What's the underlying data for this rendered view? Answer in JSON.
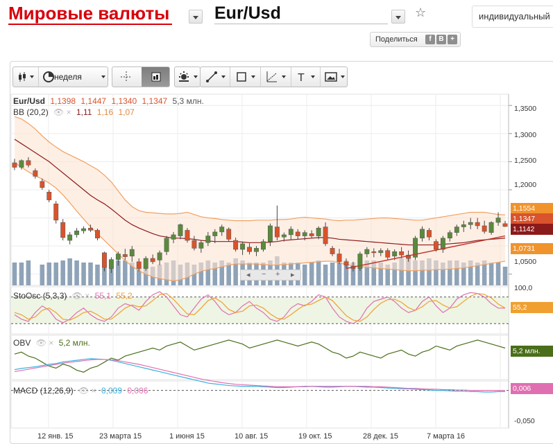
{
  "header": {
    "title": "Мировые валюты",
    "pair": "Eur/Usd",
    "mode_input": "индивидуальный",
    "share_label": "Поделиться",
    "share_buttons": [
      "f",
      "B",
      "+"
    ]
  },
  "toolbar": {
    "period_label": "неделя"
  },
  "price_legend": {
    "symbol": "Eur/Usd",
    "open": "1,1398",
    "high": "1,1447",
    "low": "1,1340",
    "close": "1,1347",
    "volume": "5,3 млн."
  },
  "bb_legend": {
    "name": "BB (20,2)",
    "mid": "1,11",
    "upper": "1,16",
    "lower": "1,07"
  },
  "sto_legend": {
    "name": "StoOsc (5,3,3)",
    "k": "55,1",
    "d": "55,2"
  },
  "obv_legend": {
    "name": "OBV",
    "value": "5,2 млн."
  },
  "macd_legend": {
    "name": "MACD (12,26,9)",
    "macd": "0,009",
    "signal": "0,006"
  },
  "price_axis": [
    "1,3500",
    "1,3000",
    "1,2500",
    "1,2000",
    "1,0500"
  ],
  "sto_axis_top": "100,0",
  "macd_axis_bottom": "-0,050",
  "badges": {
    "upper": "1,1554",
    "close": "1,1347",
    "mid": "1,1142",
    "lower": "1,0731",
    "sto": "55,2",
    "obv": "5,2 млн.",
    "macd": "0,006"
  },
  "colors": {
    "brand_red": "#d8000c",
    "bull": "#5a8a3c",
    "bear": "#d9532c",
    "bb_band": "#f0a060",
    "bb_mid": "#8b1a1a",
    "trend": "#c0392b",
    "sto_k": "#e06fb2",
    "sto_d": "#f0a030",
    "obv": "#4a6e1a",
    "macd": "#3ab0e0",
    "signal": "#e06fb2",
    "volume": "#8fa3b8"
  },
  "x_axis": [
    "12 янв. 15",
    "23 марта 15",
    "1 июня 15",
    "10 авг. 15",
    "19 окт. 15",
    "28 дек. 15",
    "7 марта 16"
  ],
  "chart_data": {
    "type": "candlestick",
    "x_labels": [
      "12 янв. 15",
      "23 марта 15",
      "1 июня 15",
      "10 авг. 15",
      "19 окт. 15",
      "28 дек. 15",
      "7 марта 16"
    ],
    "ohlc": [
      [
        1.248,
        1.255,
        1.235,
        1.24
      ],
      [
        1.24,
        1.254,
        1.236,
        1.252
      ],
      [
        1.252,
        1.258,
        1.24,
        1.244
      ],
      [
        1.234,
        1.238,
        1.22,
        1.224
      ],
      [
        1.215,
        1.22,
        1.2,
        1.204
      ],
      [
        1.196,
        1.2,
        1.178,
        1.182
      ],
      [
        1.175,
        1.18,
        1.14,
        1.146
      ],
      [
        1.142,
        1.148,
        1.11,
        1.115
      ],
      [
        1.11,
        1.125,
        1.103,
        1.12
      ],
      [
        1.12,
        1.132,
        1.115,
        1.127
      ],
      [
        1.127,
        1.135,
        1.122,
        1.131
      ],
      [
        1.132,
        1.138,
        1.125,
        1.128
      ],
      [
        1.128,
        1.131,
        1.11,
        1.114
      ],
      [
        1.088,
        1.09,
        1.055,
        1.062
      ],
      [
        1.06,
        1.08,
        1.052,
        1.076
      ],
      [
        1.076,
        1.09,
        1.065,
        1.086
      ],
      [
        1.085,
        1.095,
        1.075,
        1.081
      ],
      [
        1.082,
        1.1,
        1.072,
        1.094
      ],
      [
        1.072,
        1.078,
        1.055,
        1.06
      ],
      [
        1.06,
        1.082,
        1.056,
        1.078
      ],
      [
        1.078,
        1.085,
        1.068,
        1.072
      ],
      [
        1.075,
        1.092,
        1.066,
        1.088
      ],
      [
        1.09,
        1.118,
        1.084,
        1.114
      ],
      [
        1.112,
        1.125,
        1.105,
        1.12
      ],
      [
        1.118,
        1.14,
        1.112,
        1.138
      ],
      [
        1.128,
        1.132,
        1.106,
        1.11
      ],
      [
        1.11,
        1.118,
        1.092,
        1.096
      ],
      [
        1.096,
        1.11,
        1.088,
        1.106
      ],
      [
        1.106,
        1.125,
        1.1,
        1.118
      ],
      [
        1.118,
        1.13,
        1.105,
        1.125
      ],
      [
        1.125,
        1.138,
        1.118,
        1.134
      ],
      [
        1.13,
        1.133,
        1.108,
        1.112
      ],
      [
        1.11,
        1.115,
        1.09,
        1.094
      ],
      [
        1.094,
        1.108,
        1.084,
        1.104
      ],
      [
        1.098,
        1.105,
        1.085,
        1.09
      ],
      [
        1.09,
        1.1,
        1.082,
        1.096
      ],
      [
        1.094,
        1.112,
        1.09,
        1.108
      ],
      [
        1.108,
        1.14,
        1.1,
        1.136
      ],
      [
        1.134,
        1.172,
        1.11,
        1.116
      ],
      [
        1.116,
        1.124,
        1.108,
        1.12
      ],
      [
        1.12,
        1.135,
        1.112,
        1.13
      ],
      [
        1.125,
        1.13,
        1.112,
        1.118
      ],
      [
        1.118,
        1.128,
        1.11,
        1.124
      ],
      [
        1.122,
        1.128,
        1.114,
        1.118
      ],
      [
        1.118,
        1.135,
        1.112,
        1.132
      ],
      [
        1.134,
        1.142,
        1.1,
        1.104
      ],
      [
        1.096,
        1.1,
        1.082,
        1.086
      ],
      [
        1.086,
        1.095,
        1.068,
        1.072
      ],
      [
        1.072,
        1.078,
        1.06,
        1.066
      ],
      [
        1.064,
        1.072,
        1.055,
        1.06
      ],
      [
        1.06,
        1.09,
        1.056,
        1.086
      ],
      [
        1.086,
        1.098,
        1.08,
        1.094
      ],
      [
        1.09,
        1.096,
        1.08,
        1.088
      ],
      [
        1.088,
        1.096,
        1.082,
        1.092
      ],
      [
        1.092,
        1.096,
        1.076,
        1.08
      ],
      [
        1.082,
        1.094,
        1.075,
        1.09
      ],
      [
        1.09,
        1.098,
        1.078,
        1.084
      ],
      [
        1.084,
        1.092,
        1.072,
        1.078
      ],
      [
        1.08,
        1.118,
        1.075,
        1.114
      ],
      [
        1.114,
        1.135,
        1.108,
        1.13
      ],
      [
        1.128,
        1.132,
        1.11,
        1.116
      ],
      [
        1.108,
        1.112,
        1.09,
        1.094
      ],
      [
        1.094,
        1.118,
        1.088,
        1.114
      ],
      [
        1.114,
        1.128,
        1.108,
        1.124
      ],
      [
        1.124,
        1.138,
        1.118,
        1.134
      ],
      [
        1.134,
        1.145,
        1.125,
        1.138
      ],
      [
        1.138,
        1.15,
        1.13,
        1.142
      ],
      [
        1.142,
        1.15,
        1.13,
        1.136
      ],
      [
        1.136,
        1.145,
        1.122,
        1.126
      ],
      [
        1.124,
        1.144,
        1.12,
        1.142
      ],
      [
        1.142,
        1.16,
        1.136,
        1.15
      ],
      [
        1.1398,
        1.1447,
        1.134,
        1.1347
      ]
    ],
    "price_range": [
      1.03,
      1.37
    ],
    "bb_upper": [
      1.33,
      1.326,
      1.318,
      1.308,
      1.296,
      1.285,
      1.276,
      1.268,
      1.262,
      1.256,
      1.25,
      1.243,
      1.236,
      1.226,
      1.214,
      1.198,
      1.182,
      1.17,
      1.163,
      1.16,
      1.159,
      1.158,
      1.157,
      1.157,
      1.158,
      1.16,
      1.156,
      1.152,
      1.15,
      1.149,
      1.147,
      1.146,
      1.145,
      1.145,
      1.145,
      1.146,
      1.146,
      1.146,
      1.147,
      1.147,
      1.148,
      1.15,
      1.151,
      1.15,
      1.149,
      1.148,
      1.146,
      1.145,
      1.146,
      1.146,
      1.147,
      1.148,
      1.149,
      1.15,
      1.15,
      1.149,
      1.148,
      1.147,
      1.146,
      1.146,
      1.148,
      1.15,
      1.152,
      1.154,
      1.156,
      1.158,
      1.16,
      1.16,
      1.16,
      1.158,
      1.156,
      1.1554
    ],
    "bb_mid": [
      1.29,
      1.282,
      1.274,
      1.266,
      1.258,
      1.25,
      1.24,
      1.23,
      1.22,
      1.21,
      1.2,
      1.19,
      1.182,
      1.175,
      1.166,
      1.156,
      1.146,
      1.138,
      1.132,
      1.127,
      1.122,
      1.118,
      1.116,
      1.114,
      1.114,
      1.113,
      1.112,
      1.11,
      1.109,
      1.108,
      1.108,
      1.108,
      1.108,
      1.107,
      1.106,
      1.106,
      1.106,
      1.107,
      1.108,
      1.11,
      1.111,
      1.112,
      1.113,
      1.114,
      1.115,
      1.115,
      1.114,
      1.112,
      1.111,
      1.11,
      1.109,
      1.108,
      1.107,
      1.106,
      1.105,
      1.104,
      1.103,
      1.102,
      1.102,
      1.102,
      1.102,
      1.102,
      1.103,
      1.104,
      1.105,
      1.106,
      1.108,
      1.11,
      1.111,
      1.112,
      1.113,
      1.1142
    ],
    "bb_lower": [
      1.248,
      1.24,
      1.232,
      1.225,
      1.219,
      1.212,
      1.203,
      1.191,
      1.177,
      1.162,
      1.148,
      1.134,
      1.122,
      1.11,
      1.098,
      1.086,
      1.074,
      1.064,
      1.056,
      1.05,
      1.045,
      1.042,
      1.04,
      1.038,
      1.04,
      1.044,
      1.05,
      1.055,
      1.058,
      1.06,
      1.063,
      1.066,
      1.068,
      1.068,
      1.068,
      1.068,
      1.067,
      1.066,
      1.066,
      1.067,
      1.068,
      1.069,
      1.07,
      1.071,
      1.072,
      1.073,
      1.073,
      1.07,
      1.067,
      1.065,
      1.063,
      1.062,
      1.061,
      1.06,
      1.059,
      1.058,
      1.057,
      1.056,
      1.056,
      1.057,
      1.057,
      1.058,
      1.058,
      1.059,
      1.06,
      1.061,
      1.063,
      1.065,
      1.067,
      1.069,
      1.071,
      1.0731
    ],
    "trendline": [
      [
        1.06,
        48
      ],
      [
        1.118,
        71
      ]
    ],
    "volume": [
      0.55,
      0.55,
      0.6,
      0.0,
      0.5,
      0.55,
      0.55,
      0.6,
      0.65,
      0.6,
      0.55,
      0.55,
      0.5,
      0.55,
      0.6,
      0.6,
      0.6,
      0.55,
      0.55,
      0.5,
      0.45,
      0.5,
      0.55,
      0.6,
      0.5,
      0.55,
      0.5,
      0.55,
      0.6,
      0.55,
      0.6,
      0.55,
      0.65,
      0.6,
      0.55,
      0.55,
      0.55,
      0.6,
      0.7,
      0.55,
      0.55,
      0.55,
      0.5,
      0.55,
      0.6,
      0.5,
      0.55,
      0.55,
      0.6,
      0.55,
      0.5,
      0.6,
      0.6,
      0.55,
      0.5,
      0.55,
      0.65,
      0.65,
      0.6,
      0.6,
      0.65,
      0.6,
      0.55,
      0.6,
      0.6,
      0.55,
      0.6,
      0.55,
      0.6,
      0.55,
      0.55,
      0.45
    ],
    "sto_k": [
      40,
      30,
      25,
      45,
      60,
      50,
      30,
      22,
      30,
      45,
      55,
      40,
      30,
      25,
      35,
      55,
      65,
      60,
      50,
      70,
      85,
      92,
      80,
      60,
      40,
      35,
      55,
      75,
      85,
      70,
      50,
      40,
      45,
      60,
      70,
      55,
      45,
      30,
      25,
      35,
      55,
      65,
      60,
      70,
      85,
      80,
      55,
      35,
      25,
      20,
      30,
      55,
      70,
      75,
      80,
      70,
      55,
      45,
      50,
      70,
      80,
      60,
      45,
      55,
      75,
      85,
      90,
      88,
      80,
      65,
      55,
      55.1
    ],
    "sto_d": [
      45,
      40,
      30,
      35,
      50,
      55,
      45,
      30,
      28,
      35,
      45,
      48,
      40,
      30,
      30,
      42,
      55,
      62,
      58,
      60,
      72,
      85,
      88,
      75,
      58,
      42,
      40,
      55,
      72,
      78,
      68,
      52,
      45,
      48,
      60,
      62,
      55,
      42,
      32,
      30,
      40,
      52,
      62,
      64,
      72,
      80,
      72,
      55,
      38,
      28,
      25,
      35,
      52,
      66,
      74,
      75,
      68,
      56,
      50,
      58,
      70,
      72,
      62,
      55,
      58,
      70,
      82,
      88,
      86,
      78,
      64,
      55.2
    ],
    "obv": [
      0.6,
      0.65,
      0.55,
      0.5,
      0.4,
      0.3,
      0.25,
      0.35,
      0.3,
      0.2,
      0.15,
      0.25,
      0.3,
      0.4,
      0.5,
      0.45,
      0.55,
      0.6,
      0.65,
      0.7,
      0.75,
      0.7,
      0.8,
      0.85,
      0.9,
      0.8,
      0.7,
      0.75,
      0.8,
      0.85,
      0.9,
      0.95,
      0.9,
      0.85,
      0.75,
      0.8,
      0.85,
      0.9,
      0.95,
      0.9,
      0.85,
      0.8,
      0.85,
      0.9,
      0.85,
      0.75,
      0.65,
      0.6,
      0.5,
      0.55,
      0.65,
      0.6,
      0.55,
      0.5,
      0.6,
      0.65,
      0.7,
      0.6,
      0.55,
      0.65,
      0.7,
      0.8,
      0.75,
      0.7,
      0.8,
      0.85,
      0.9,
      0.95,
      0.9,
      0.85,
      0.8,
      0.75
    ],
    "macd": [
      -0.045,
      -0.048,
      -0.05,
      -0.052,
      -0.055,
      -0.058,
      -0.06,
      -0.064,
      -0.066,
      -0.068,
      -0.07,
      -0.072,
      -0.071,
      -0.07,
      -0.068,
      -0.064,
      -0.06,
      -0.056,
      -0.052,
      -0.048,
      -0.044,
      -0.04,
      -0.036,
      -0.032,
      -0.028,
      -0.024,
      -0.02,
      -0.016,
      -0.012,
      -0.01,
      -0.008,
      -0.006,
      -0.005,
      -0.004,
      -0.004,
      -0.004,
      -0.003,
      -0.002,
      -0.001,
      -0.001,
      -0.002,
      -0.003,
      -0.004,
      -0.004,
      -0.003,
      -0.002,
      -0.002,
      -0.003,
      -0.004,
      -0.004,
      -0.003,
      -0.002,
      -0.002,
      -0.001,
      0.0,
      0.001,
      0.002,
      0.002,
      0.003,
      0.004,
      0.005,
      0.006,
      0.006,
      0.007,
      0.008,
      0.008,
      0.009,
      0.009,
      0.01,
      0.01,
      0.009,
      0.009
    ],
    "signal": [
      -0.04,
      -0.043,
      -0.046,
      -0.049,
      -0.052,
      -0.055,
      -0.058,
      -0.061,
      -0.063,
      -0.065,
      -0.067,
      -0.069,
      -0.07,
      -0.07,
      -0.069,
      -0.067,
      -0.064,
      -0.061,
      -0.058,
      -0.054,
      -0.05,
      -0.046,
      -0.042,
      -0.038,
      -0.034,
      -0.03,
      -0.026,
      -0.022,
      -0.019,
      -0.016,
      -0.013,
      -0.011,
      -0.009,
      -0.008,
      -0.007,
      -0.006,
      -0.005,
      -0.004,
      -0.003,
      -0.003,
      -0.003,
      -0.003,
      -0.003,
      -0.004,
      -0.004,
      -0.004,
      -0.004,
      -0.004,
      -0.004,
      -0.004,
      -0.004,
      -0.004,
      -0.003,
      -0.003,
      -0.002,
      -0.001,
      0.0,
      0.001,
      0.001,
      0.002,
      0.003,
      0.003,
      0.004,
      0.004,
      0.005,
      0.005,
      0.006,
      0.006,
      0.006,
      0.006,
      0.006,
      0.006
    ]
  }
}
